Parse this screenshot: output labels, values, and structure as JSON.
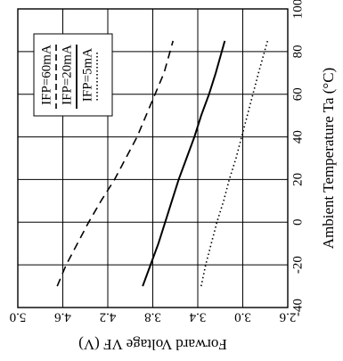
{
  "chart_data": {
    "type": "line",
    "orientation": "rotated-90",
    "xlabel": "Ambient Temperature Ta (°C)",
    "ylabel": "Forward Voltage  VF (V)",
    "xlim": [
      -40,
      100
    ],
    "ylim": [
      2.6,
      5.0
    ],
    "x_ticks": [
      "-40",
      "-20",
      "0",
      "20",
      "40",
      "60",
      "80",
      "100"
    ],
    "y_ticks": [
      "5.0",
      "4.6",
      "4.2",
      "3.8",
      "3.4",
      "3.0",
      "2.6"
    ],
    "grid": true,
    "legend_position": "top-left",
    "series": [
      {
        "name": "IFP=60mA",
        "line_style": "dashed",
        "x": [
          -30,
          -20,
          -10,
          0,
          10,
          20,
          30,
          40,
          50,
          60,
          70,
          85
        ],
        "values": [
          4.65,
          4.57,
          4.47,
          4.37,
          4.26,
          4.14,
          4.04,
          3.94,
          3.86,
          3.78,
          3.7,
          3.62
        ]
      },
      {
        "name": "IFP=20mA",
        "line_style": "solid",
        "x": [
          -30,
          -20,
          -10,
          0,
          10,
          20,
          30,
          40,
          50,
          60,
          70,
          85
        ],
        "values": [
          3.89,
          3.82,
          3.75,
          3.69,
          3.63,
          3.57,
          3.5,
          3.43,
          3.37,
          3.3,
          3.24,
          3.16
        ]
      },
      {
        "name": "IFP=5mA",
        "line_style": "dotted",
        "x": [
          -30,
          -20,
          -10,
          0,
          10,
          20,
          30,
          40,
          50,
          60,
          70,
          85
        ],
        "values": [
          3.37,
          3.33,
          3.28,
          3.23,
          3.17,
          3.12,
          3.06,
          3.01,
          2.96,
          2.91,
          2.86,
          2.78
        ]
      }
    ]
  }
}
